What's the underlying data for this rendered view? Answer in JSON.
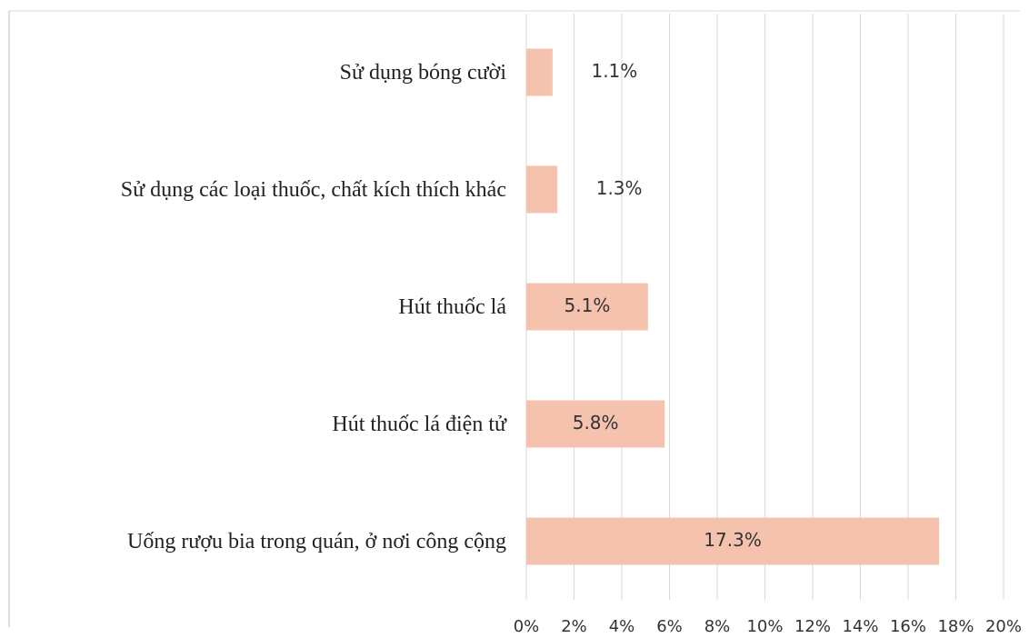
{
  "chart_data": {
    "type": "barh",
    "categories": [
      "Sử dụng bóng cười",
      "Sử dụng các loại thuốc, chất kích thích khác",
      "Hút thuốc lá",
      "Hút thuốc lá điện tử",
      "Uống rượu bia trong quán, ở nơi công cộng"
    ],
    "values": [
      1.1,
      1.3,
      5.1,
      5.8,
      17.3
    ],
    "value_labels": [
      "1.1%",
      "1.3%",
      "5.1%",
      "5.8%",
      "17.3%"
    ],
    "color": "#f5c2ae",
    "xlim": [
      0,
      20
    ],
    "xticks": [
      {
        "value": 0,
        "label": "0%"
      },
      {
        "value": 2,
        "label": "2%"
      },
      {
        "value": 4,
        "label": "4%"
      },
      {
        "value": 6,
        "label": "6%"
      },
      {
        "value": 8,
        "label": "8%"
      },
      {
        "value": 10,
        "label": "10%"
      },
      {
        "value": 12,
        "label": "12%"
      },
      {
        "value": 14,
        "label": "14%"
      },
      {
        "value": 16,
        "label": "16%"
      },
      {
        "value": 18,
        "label": "18%"
      },
      {
        "value": 20,
        "label": "20%"
      }
    ],
    "grid": true
  }
}
